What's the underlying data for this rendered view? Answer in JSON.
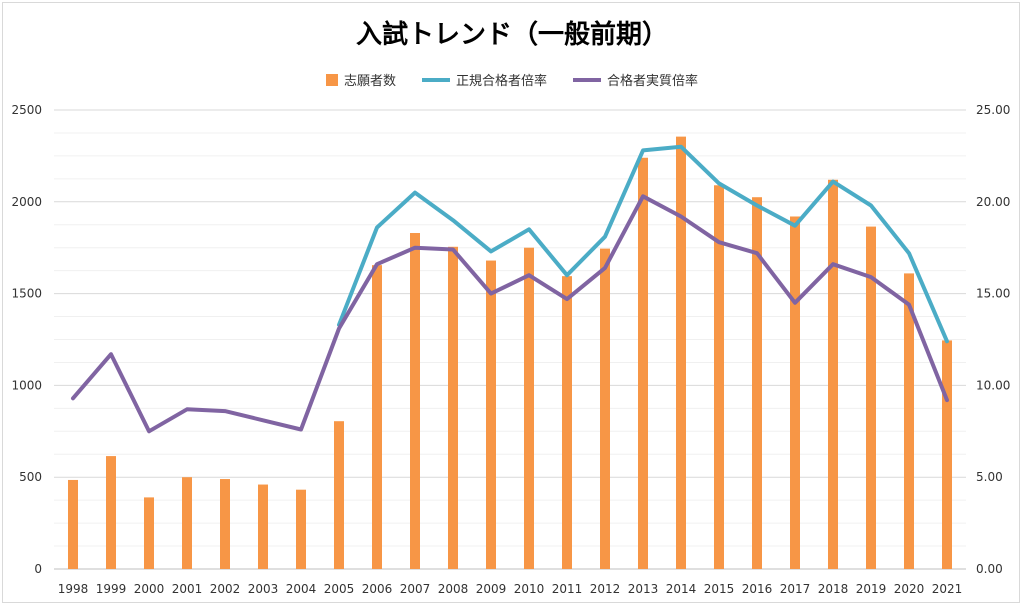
{
  "chart_data": {
    "type": "bar+line",
    "title": "入試トレンド（一般前期）",
    "categories": [
      "1998",
      "1999",
      "2000",
      "2001",
      "2002",
      "2003",
      "2004",
      "2005",
      "2006",
      "2007",
      "2008",
      "2009",
      "2010",
      "2011",
      "2012",
      "2013",
      "2014",
      "2015",
      "2016",
      "2017",
      "2018",
      "2019",
      "2020",
      "2021"
    ],
    "bar_series": {
      "name": "志願者数",
      "axis": "left",
      "color": "#F79646",
      "values": [
        485,
        615,
        390,
        500,
        490,
        460,
        432,
        805,
        1655,
        1830,
        1755,
        1680,
        1750,
        1595,
        1745,
        2240,
        2355,
        2090,
        2025,
        1920,
        2120,
        1865,
        1610,
        1245
      ]
    },
    "line_series": [
      {
        "name": "正規合格者倍率",
        "axis": "right",
        "color": "#4BACC6",
        "values": [
          null,
          null,
          null,
          null,
          null,
          null,
          null,
          13.3,
          18.6,
          20.5,
          19.0,
          17.3,
          18.5,
          16.0,
          18.1,
          22.8,
          23.0,
          21.0,
          19.8,
          18.7,
          21.1,
          19.8,
          17.2,
          12.4
        ]
      },
      {
        "name": "合格者実質倍率",
        "axis": "right",
        "color": "#8064A2",
        "values": [
          9.3,
          11.7,
          7.5,
          8.7,
          8.6,
          8.1,
          7.6,
          13.1,
          16.6,
          17.5,
          17.4,
          15.0,
          16.0,
          14.7,
          16.4,
          20.3,
          19.2,
          17.8,
          17.2,
          14.5,
          16.6,
          15.9,
          14.4,
          9.2
        ]
      }
    ],
    "y_left": {
      "min": 0,
      "max": 2500,
      "ticks": [
        "0",
        "500",
        "1000",
        "1500",
        "2000",
        "2500"
      ]
    },
    "y_right": {
      "min": 0,
      "max": 25,
      "ticks": [
        "0.00",
        "5.00",
        "10.00",
        "15.00",
        "20.00",
        "25.00"
      ]
    },
    "grid": true,
    "legend_position": "top"
  }
}
